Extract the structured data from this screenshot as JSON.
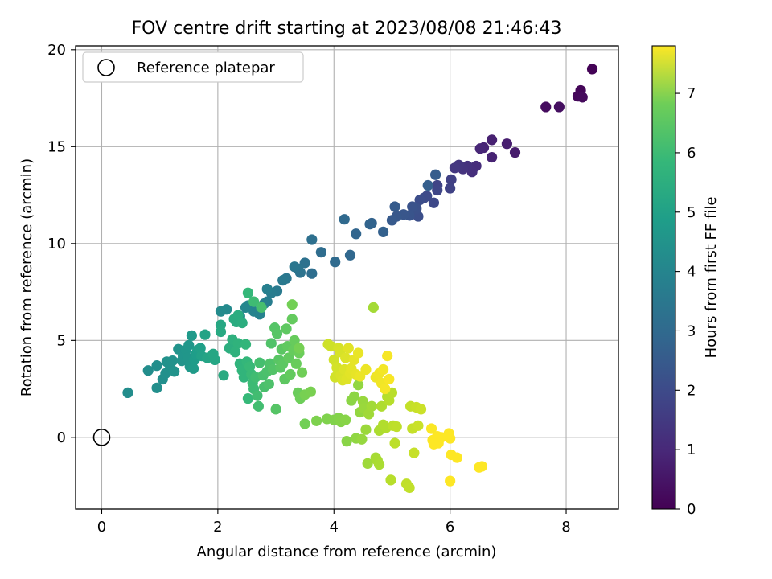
{
  "chart_data": {
    "type": "scatter",
    "title": "FOV centre drift starting at 2023/08/08 21:46:43",
    "xlabel": "Angular distance from reference (arcmin)",
    "ylabel": "Rotation from reference (arcmin)",
    "xlim": [
      -0.45,
      8.9
    ],
    "ylim": [
      -3.7,
      20.2
    ],
    "xticks": [
      0,
      2,
      4,
      6,
      8
    ],
    "yticks": [
      0,
      5,
      10,
      15,
      20
    ],
    "grid": true,
    "legend": {
      "position": "top-left",
      "entries": [
        "Reference platepar"
      ]
    },
    "reference_point": {
      "x": 0,
      "y": 0
    },
    "colorbar": {
      "label": "Hours from first FF file",
      "range": [
        0,
        7.8
      ],
      "ticks": [
        0,
        1,
        2,
        3,
        4,
        5,
        6,
        7
      ],
      "colormap": "viridis"
    },
    "points": [
      {
        "x": 8.45,
        "y": 19.0,
        "t": 0.05
      },
      {
        "x": 8.25,
        "y": 17.9,
        "t": 0.1
      },
      {
        "x": 8.2,
        "y": 17.6,
        "t": 0.15
      },
      {
        "x": 8.28,
        "y": 17.55,
        "t": 0.2
      },
      {
        "x": 7.65,
        "y": 17.05,
        "t": 0.25
      },
      {
        "x": 7.88,
        "y": 17.05,
        "t": 0.3
      },
      {
        "x": 7.12,
        "y": 14.7,
        "t": 0.6
      },
      {
        "x": 6.98,
        "y": 15.15,
        "t": 0.65
      },
      {
        "x": 6.72,
        "y": 15.35,
        "t": 0.7
      },
      {
        "x": 6.72,
        "y": 14.45,
        "t": 0.75
      },
      {
        "x": 6.58,
        "y": 14.95,
        "t": 0.8
      },
      {
        "x": 6.52,
        "y": 14.9,
        "t": 0.85
      },
      {
        "x": 6.45,
        "y": 14.0,
        "t": 1.0
      },
      {
        "x": 6.38,
        "y": 13.7,
        "t": 1.05
      },
      {
        "x": 6.3,
        "y": 14.0,
        "t": 1.1
      },
      {
        "x": 6.22,
        "y": 13.85,
        "t": 1.15
      },
      {
        "x": 6.15,
        "y": 14.05,
        "t": 1.2
      },
      {
        "x": 6.08,
        "y": 13.9,
        "t": 1.25
      },
      {
        "x": 6.02,
        "y": 13.3,
        "t": 1.5
      },
      {
        "x": 6.0,
        "y": 12.85,
        "t": 1.55
      },
      {
        "x": 5.78,
        "y": 13.0,
        "t": 1.6
      },
      {
        "x": 5.78,
        "y": 12.75,
        "t": 1.65
      },
      {
        "x": 5.72,
        "y": 12.1,
        "t": 1.7
      },
      {
        "x": 5.6,
        "y": 12.45,
        "t": 1.75
      },
      {
        "x": 5.55,
        "y": 12.35,
        "t": 1.8
      },
      {
        "x": 5.48,
        "y": 12.25,
        "t": 1.85
      },
      {
        "x": 5.45,
        "y": 11.4,
        "t": 1.9
      },
      {
        "x": 5.42,
        "y": 11.8,
        "t": 1.95
      },
      {
        "x": 5.35,
        "y": 11.9,
        "t": 2.0
      },
      {
        "x": 5.3,
        "y": 11.45,
        "t": 2.05
      },
      {
        "x": 5.2,
        "y": 11.5,
        "t": 2.1
      },
      {
        "x": 5.08,
        "y": 11.4,
        "t": 2.15
      },
      {
        "x": 5.0,
        "y": 11.2,
        "t": 2.2
      },
      {
        "x": 5.05,
        "y": 11.9,
        "t": 2.25
      },
      {
        "x": 5.75,
        "y": 13.55,
        "t": 2.3
      },
      {
        "x": 5.62,
        "y": 13.0,
        "t": 2.35
      },
      {
        "x": 4.85,
        "y": 10.6,
        "t": 2.4
      },
      {
        "x": 4.65,
        "y": 11.05,
        "t": 2.45
      },
      {
        "x": 4.62,
        "y": 11.0,
        "t": 2.5
      },
      {
        "x": 4.38,
        "y": 10.5,
        "t": 2.55
      },
      {
        "x": 4.28,
        "y": 9.4,
        "t": 2.6
      },
      {
        "x": 4.18,
        "y": 11.25,
        "t": 2.65
      },
      {
        "x": 4.02,
        "y": 9.05,
        "t": 2.7
      },
      {
        "x": 3.78,
        "y": 9.55,
        "t": 2.75
      },
      {
        "x": 3.62,
        "y": 8.45,
        "t": 2.8
      },
      {
        "x": 3.62,
        "y": 10.2,
        "t": 2.85
      },
      {
        "x": 3.5,
        "y": 9.0,
        "t": 2.9
      },
      {
        "x": 3.42,
        "y": 8.5,
        "t": 2.95
      },
      {
        "x": 3.38,
        "y": 8.7,
        "t": 3.0
      },
      {
        "x": 3.32,
        "y": 8.8,
        "t": 3.05
      },
      {
        "x": 3.18,
        "y": 8.2,
        "t": 3.1
      },
      {
        "x": 3.12,
        "y": 8.1,
        "t": 3.15
      },
      {
        "x": 3.02,
        "y": 7.55,
        "t": 3.2
      },
      {
        "x": 2.92,
        "y": 7.45,
        "t": 3.25
      },
      {
        "x": 2.85,
        "y": 7.0,
        "t": 3.3
      },
      {
        "x": 2.85,
        "y": 7.65,
        "t": 3.35
      },
      {
        "x": 2.8,
        "y": 6.9,
        "t": 3.4
      },
      {
        "x": 2.72,
        "y": 6.35,
        "t": 3.45
      },
      {
        "x": 2.62,
        "y": 6.5,
        "t": 3.5
      },
      {
        "x": 2.52,
        "y": 6.8,
        "t": 3.55
      },
      {
        "x": 2.48,
        "y": 6.7,
        "t": 3.6
      },
      {
        "x": 2.38,
        "y": 6.25,
        "t": 3.65
      },
      {
        "x": 2.15,
        "y": 6.6,
        "t": 3.7
      },
      {
        "x": 2.05,
        "y": 6.5,
        "t": 3.75
      },
      {
        "x": 0.45,
        "y": 2.3,
        "t": 3.8
      },
      {
        "x": 0.8,
        "y": 3.45,
        "t": 3.82
      },
      {
        "x": 0.95,
        "y": 3.7,
        "t": 3.84
      },
      {
        "x": 0.95,
        "y": 2.55,
        "t": 3.86
      },
      {
        "x": 1.05,
        "y": 3.0,
        "t": 3.88
      },
      {
        "x": 1.1,
        "y": 3.3,
        "t": 3.9
      },
      {
        "x": 1.12,
        "y": 3.9,
        "t": 3.92
      },
      {
        "x": 1.18,
        "y": 3.6,
        "t": 3.94
      },
      {
        "x": 1.22,
        "y": 3.95,
        "t": 3.96
      },
      {
        "x": 1.25,
        "y": 3.4,
        "t": 3.98
      },
      {
        "x": 1.32,
        "y": 4.55,
        "t": 4.0
      },
      {
        "x": 1.38,
        "y": 3.95,
        "t": 4.02
      },
      {
        "x": 1.4,
        "y": 4.2,
        "t": 4.05
      },
      {
        "x": 1.45,
        "y": 4.5,
        "t": 4.08
      },
      {
        "x": 1.48,
        "y": 4.1,
        "t": 4.1
      },
      {
        "x": 1.5,
        "y": 4.75,
        "t": 4.12
      },
      {
        "x": 1.52,
        "y": 3.65,
        "t": 4.15
      },
      {
        "x": 1.55,
        "y": 5.25,
        "t": 4.2
      },
      {
        "x": 1.58,
        "y": 3.55,
        "t": 4.25
      },
      {
        "x": 1.6,
        "y": 4.0,
        "t": 4.28
      },
      {
        "x": 1.62,
        "y": 4.3,
        "t": 4.3
      },
      {
        "x": 1.65,
        "y": 4.5,
        "t": 4.35
      },
      {
        "x": 1.7,
        "y": 4.6,
        "t": 4.4
      },
      {
        "x": 1.72,
        "y": 4.2,
        "t": 4.45
      },
      {
        "x": 1.78,
        "y": 5.3,
        "t": 4.5
      },
      {
        "x": 1.82,
        "y": 4.1,
        "t": 4.55
      },
      {
        "x": 1.92,
        "y": 4.3,
        "t": 4.6
      },
      {
        "x": 1.95,
        "y": 4.0,
        "t": 4.62
      },
      {
        "x": 2.05,
        "y": 5.8,
        "t": 4.65
      },
      {
        "x": 2.05,
        "y": 5.45,
        "t": 4.7
      },
      {
        "x": 2.1,
        "y": 3.2,
        "t": 4.75
      },
      {
        "x": 2.28,
        "y": 6.1,
        "t": 4.78
      },
      {
        "x": 2.32,
        "y": 5.95,
        "t": 4.8
      },
      {
        "x": 2.35,
        "y": 6.3,
        "t": 4.82
      },
      {
        "x": 2.42,
        "y": 5.9,
        "t": 4.85
      },
      {
        "x": 2.2,
        "y": 4.6,
        "t": 4.9
      },
      {
        "x": 2.25,
        "y": 5.05,
        "t": 4.95
      },
      {
        "x": 2.3,
        "y": 4.4,
        "t": 5.0
      },
      {
        "x": 2.35,
        "y": 4.85,
        "t": 5.02
      },
      {
        "x": 2.38,
        "y": 3.8,
        "t": 5.05
      },
      {
        "x": 2.42,
        "y": 3.45,
        "t": 5.08
      },
      {
        "x": 2.45,
        "y": 3.1,
        "t": 5.1
      },
      {
        "x": 2.48,
        "y": 4.8,
        "t": 5.12
      },
      {
        "x": 2.5,
        "y": 3.9,
        "t": 5.15
      },
      {
        "x": 2.52,
        "y": 7.45,
        "t": 5.2
      },
      {
        "x": 2.52,
        "y": 2.0,
        "t": 5.22
      },
      {
        "x": 2.55,
        "y": 3.65,
        "t": 5.25
      },
      {
        "x": 2.58,
        "y": 3.25,
        "t": 5.28
      },
      {
        "x": 2.6,
        "y": 2.8,
        "t": 5.3
      },
      {
        "x": 2.62,
        "y": 2.5,
        "t": 5.32
      },
      {
        "x": 2.62,
        "y": 7.0,
        "t": 5.35
      },
      {
        "x": 2.65,
        "y": 3.1,
        "t": 5.38
      },
      {
        "x": 2.68,
        "y": 2.15,
        "t": 5.4
      },
      {
        "x": 2.7,
        "y": 1.6,
        "t": 5.42
      },
      {
        "x": 2.72,
        "y": 3.85,
        "t": 5.45
      },
      {
        "x": 2.75,
        "y": 6.7,
        "t": 5.48
      },
      {
        "x": 2.78,
        "y": 3.2,
        "t": 5.5
      },
      {
        "x": 2.8,
        "y": 2.6,
        "t": 5.52
      },
      {
        "x": 2.85,
        "y": 3.4,
        "t": 5.55
      },
      {
        "x": 2.88,
        "y": 2.75,
        "t": 5.58
      },
      {
        "x": 2.9,
        "y": 3.8,
        "t": 5.6
      },
      {
        "x": 2.92,
        "y": 4.85,
        "t": 5.62
      },
      {
        "x": 2.95,
        "y": 3.5,
        "t": 5.65
      },
      {
        "x": 2.98,
        "y": 5.65,
        "t": 5.68
      },
      {
        "x": 3.0,
        "y": 1.45,
        "t": 5.7
      },
      {
        "x": 3.02,
        "y": 5.35,
        "t": 5.72
      },
      {
        "x": 3.05,
        "y": 4.0,
        "t": 5.74
      },
      {
        "x": 3.08,
        "y": 3.6,
        "t": 5.76
      },
      {
        "x": 3.1,
        "y": 4.55,
        "t": 5.78
      },
      {
        "x": 3.12,
        "y": 3.8,
        "t": 5.8
      },
      {
        "x": 3.15,
        "y": 3.0,
        "t": 5.82
      },
      {
        "x": 3.18,
        "y": 5.6,
        "t": 5.84
      },
      {
        "x": 3.2,
        "y": 4.7,
        "t": 5.86
      },
      {
        "x": 3.22,
        "y": 4.1,
        "t": 5.88
      },
      {
        "x": 3.25,
        "y": 3.25,
        "t": 5.9
      },
      {
        "x": 3.28,
        "y": 6.1,
        "t": 5.92
      },
      {
        "x": 3.3,
        "y": 4.5,
        "t": 5.94
      },
      {
        "x": 3.32,
        "y": 5.0,
        "t": 5.96
      },
      {
        "x": 3.35,
        "y": 3.8,
        "t": 5.98
      },
      {
        "x": 3.38,
        "y": 2.3,
        "t": 6.0
      },
      {
        "x": 3.4,
        "y": 4.35,
        "t": 6.02
      },
      {
        "x": 3.42,
        "y": 2.0,
        "t": 6.05
      },
      {
        "x": 3.45,
        "y": 3.35,
        "t": 6.08
      },
      {
        "x": 3.5,
        "y": 0.7,
        "t": 6.1
      },
      {
        "x": 3.28,
        "y": 6.85,
        "t": 6.12
      },
      {
        "x": 3.4,
        "y": 4.6,
        "t": 6.15
      },
      {
        "x": 3.5,
        "y": 2.2,
        "t": 6.18
      },
      {
        "x": 3.6,
        "y": 2.35,
        "t": 6.2
      },
      {
        "x": 3.7,
        "y": 0.85,
        "t": 6.25
      },
      {
        "x": 3.88,
        "y": 0.95,
        "t": 6.28
      },
      {
        "x": 4.0,
        "y": 0.9,
        "t": 6.3
      },
      {
        "x": 4.08,
        "y": 1.0,
        "t": 6.32
      },
      {
        "x": 4.12,
        "y": 0.8,
        "t": 6.35
      },
      {
        "x": 4.2,
        "y": 0.9,
        "t": 6.38
      },
      {
        "x": 4.22,
        "y": -0.2,
        "t": 6.4
      },
      {
        "x": 4.3,
        "y": 1.9,
        "t": 6.42
      },
      {
        "x": 4.35,
        "y": 2.1,
        "t": 6.45
      },
      {
        "x": 4.38,
        "y": -0.05,
        "t": 6.48
      },
      {
        "x": 4.42,
        "y": 2.7,
        "t": 6.5
      },
      {
        "x": 4.45,
        "y": 1.3,
        "t": 6.52
      },
      {
        "x": 4.48,
        "y": -0.1,
        "t": 6.55
      },
      {
        "x": 4.5,
        "y": 1.85,
        "t": 6.58
      },
      {
        "x": 4.52,
        "y": 1.5,
        "t": 6.6
      },
      {
        "x": 4.55,
        "y": 0.4,
        "t": 6.62
      },
      {
        "x": 4.58,
        "y": -1.35,
        "t": 6.65
      },
      {
        "x": 4.6,
        "y": 1.2,
        "t": 6.68
      },
      {
        "x": 4.65,
        "y": 1.6,
        "t": 6.7
      },
      {
        "x": 4.68,
        "y": 6.7,
        "t": 6.72
      },
      {
        "x": 4.72,
        "y": -1.05,
        "t": 6.75
      },
      {
        "x": 4.75,
        "y": -1.2,
        "t": 6.78
      },
      {
        "x": 4.78,
        "y": -1.4,
        "t": 6.8
      },
      {
        "x": 4.78,
        "y": 0.35,
        "t": 6.82
      },
      {
        "x": 4.82,
        "y": 1.6,
        "t": 6.85
      },
      {
        "x": 4.85,
        "y": 0.65,
        "t": 6.88
      },
      {
        "x": 4.9,
        "y": 0.5,
        "t": 6.9
      },
      {
        "x": 4.92,
        "y": 2.1,
        "t": 6.92
      },
      {
        "x": 4.95,
        "y": 1.9,
        "t": 6.94
      },
      {
        "x": 4.98,
        "y": -2.2,
        "t": 6.96
      },
      {
        "x": 5.0,
        "y": 2.3,
        "t": 6.98
      },
      {
        "x": 5.02,
        "y": 0.6,
        "t": 7.0
      },
      {
        "x": 5.05,
        "y": -0.3,
        "t": 7.02
      },
      {
        "x": 5.08,
        "y": 0.55,
        "t": 7.04
      },
      {
        "x": 5.25,
        "y": -2.4,
        "t": 7.06
      },
      {
        "x": 5.3,
        "y": -2.6,
        "t": 7.08
      },
      {
        "x": 5.32,
        "y": 1.6,
        "t": 7.1
      },
      {
        "x": 5.35,
        "y": 0.45,
        "t": 7.12
      },
      {
        "x": 5.38,
        "y": -0.8,
        "t": 7.14
      },
      {
        "x": 5.42,
        "y": 1.55,
        "t": 7.16
      },
      {
        "x": 5.45,
        "y": 0.6,
        "t": 7.18
      },
      {
        "x": 5.5,
        "y": 1.45,
        "t": 7.2
      },
      {
        "x": 3.9,
        "y": 4.8,
        "t": 7.22
      },
      {
        "x": 3.95,
        "y": 4.7,
        "t": 7.24
      },
      {
        "x": 4.0,
        "y": 4.0,
        "t": 7.26
      },
      {
        "x": 4.02,
        "y": 3.1,
        "t": 7.28
      },
      {
        "x": 4.05,
        "y": 3.6,
        "t": 7.3
      },
      {
        "x": 4.08,
        "y": 4.6,
        "t": 7.32
      },
      {
        "x": 4.1,
        "y": 4.4,
        "t": 7.34
      },
      {
        "x": 4.12,
        "y": 3.2,
        "t": 7.36
      },
      {
        "x": 4.15,
        "y": 2.95,
        "t": 7.38
      },
      {
        "x": 4.18,
        "y": 3.5,
        "t": 7.4
      },
      {
        "x": 4.2,
        "y": 4.1,
        "t": 7.42
      },
      {
        "x": 4.22,
        "y": 3.0,
        "t": 7.44
      },
      {
        "x": 4.25,
        "y": 4.6,
        "t": 7.46
      },
      {
        "x": 4.28,
        "y": 3.3,
        "t": 7.48
      },
      {
        "x": 4.3,
        "y": 3.55,
        "t": 7.5
      },
      {
        "x": 4.35,
        "y": 4.0,
        "t": 7.52
      },
      {
        "x": 4.38,
        "y": 3.25,
        "t": 7.54
      },
      {
        "x": 4.42,
        "y": 4.35,
        "t": 7.56
      },
      {
        "x": 4.45,
        "y": 3.15,
        "t": 7.58
      },
      {
        "x": 4.55,
        "y": 3.5,
        "t": 7.6
      },
      {
        "x": 4.72,
        "y": 3.1,
        "t": 7.62
      },
      {
        "x": 4.78,
        "y": 3.3,
        "t": 7.64
      },
      {
        "x": 4.82,
        "y": 2.8,
        "t": 7.66
      },
      {
        "x": 4.85,
        "y": 3.5,
        "t": 7.68
      },
      {
        "x": 4.88,
        "y": 2.5,
        "t": 7.7
      },
      {
        "x": 4.92,
        "y": 4.2,
        "t": 7.72
      },
      {
        "x": 4.95,
        "y": 3.0,
        "t": 7.74
      },
      {
        "x": 5.68,
        "y": 0.45,
        "t": 7.76
      },
      {
        "x": 5.7,
        "y": -0.15,
        "t": 7.78
      },
      {
        "x": 5.72,
        "y": -0.35,
        "t": 7.8
      },
      {
        "x": 5.75,
        "y": -0.1,
        "t": 7.8
      },
      {
        "x": 5.8,
        "y": -0.3,
        "t": 7.8
      },
      {
        "x": 5.85,
        "y": 0.0,
        "t": 7.8
      },
      {
        "x": 6.0,
        "y": -0.05,
        "t": 7.8
      },
      {
        "x": 6.0,
        "y": -2.25,
        "t": 7.8
      },
      {
        "x": 6.02,
        "y": -0.9,
        "t": 7.8
      },
      {
        "x": 6.12,
        "y": -1.05,
        "t": 7.8
      },
      {
        "x": 6.5,
        "y": -1.55,
        "t": 7.8
      },
      {
        "x": 6.55,
        "y": -1.5,
        "t": 7.8
      },
      {
        "x": 5.98,
        "y": 0.2,
        "t": 7.8
      },
      {
        "x": 5.78,
        "y": 0.05,
        "t": 7.8
      }
    ]
  }
}
